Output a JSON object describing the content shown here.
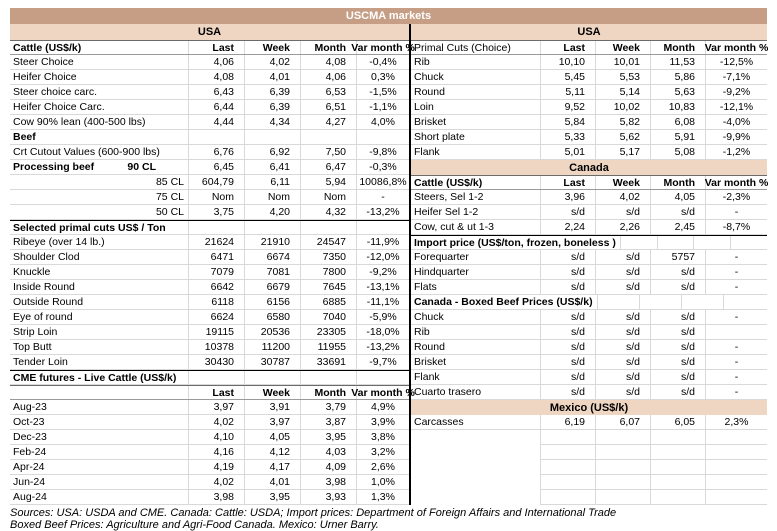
{
  "title": "USCMA markets",
  "colors": {
    "title_bg": "#c69e85",
    "band_bg": "#eed6c2"
  },
  "left": {
    "band": "USA",
    "rows": [
      {
        "t": "colheader",
        "cls": "label-bold",
        "label": "Cattle (US$/k)",
        "last": "Last",
        "week": "Week",
        "month": "Month",
        "var": "Var month %"
      },
      {
        "t": "data",
        "label": "Steer Choice",
        "last": "4,06",
        "week": "4,02",
        "month": "4,08",
        "var": "-0,4%"
      },
      {
        "t": "data",
        "label": "Heifer Choice",
        "last": "4,08",
        "week": "4,01",
        "month": "4,06",
        "var": "0,3%"
      },
      {
        "t": "data",
        "label": "Steer choice carc.",
        "last": "6,43",
        "week": "6,39",
        "month": "6,53",
        "var": "-1,5%"
      },
      {
        "t": "data",
        "label": "Heifer Choice Carc.",
        "last": "6,44",
        "week": "6,39",
        "month": "6,51",
        "var": "-1,1%"
      },
      {
        "t": "data",
        "label": "Cow 90% lean (400-500 lbs)",
        "last": "4,44",
        "week": "4,34",
        "month": "4,27",
        "var": "4,0%"
      },
      {
        "t": "section",
        "label": "Beef"
      },
      {
        "t": "data",
        "label": "Crt Cutout Values (600-900 lbs)",
        "last": "6,76",
        "week": "6,92",
        "month": "7,50",
        "var": "-9,8%"
      },
      {
        "t": "data",
        "cls": "label-bold proc",
        "label": "Processing beef",
        "label2": "90 CL",
        "last": "6,45",
        "week": "6,41",
        "month": "6,47",
        "var": "-0,3%"
      },
      {
        "t": "data",
        "label": "",
        "label2": "85 CL",
        "last": "604,79",
        "week": "6,11",
        "month": "5,94",
        "var": "10086,8%"
      },
      {
        "t": "data",
        "label": "",
        "label2": "75 CL",
        "last": "Nom",
        "week": "Nom",
        "month": "Nom",
        "var": "-"
      },
      {
        "t": "data",
        "label": "",
        "label2": "50 CL",
        "last": "3,75",
        "week": "4,20",
        "month": "4,32",
        "var": "-13,2%"
      },
      {
        "t": "section",
        "cls": "dark-top",
        "label": "Selected primal cuts US$ / Ton"
      },
      {
        "t": "data",
        "label": "Ribeye (over 14 lb.)",
        "last": "21624",
        "week": "21910",
        "month": "24547",
        "var": "-11,9%"
      },
      {
        "t": "data",
        "label": "Shoulder Clod",
        "last": "6471",
        "week": "6674",
        "month": "7350",
        "var": "-12,0%"
      },
      {
        "t": "data",
        "label": "Knuckle",
        "last": "7079",
        "week": "7081",
        "month": "7800",
        "var": "-9,2%"
      },
      {
        "t": "data",
        "label": "Inside Round",
        "last": "6642",
        "week": "6679",
        "month": "7645",
        "var": "-13,1%"
      },
      {
        "t": "data",
        "label": "Outside Round",
        "last": "6118",
        "week": "6156",
        "month": "6885",
        "var": "-11,1%"
      },
      {
        "t": "data",
        "label": "Eye of round",
        "last": "6624",
        "week": "6580",
        "month": "7040",
        "var": "-5,9%"
      },
      {
        "t": "data",
        "label": "Strip Loin",
        "last": "19115",
        "week": "20536",
        "month": "23305",
        "var": "-18,0%"
      },
      {
        "t": "data",
        "label": "Top Butt",
        "last": "10378",
        "week": "11200",
        "month": "11955",
        "var": "-13,2%"
      },
      {
        "t": "data",
        "label": "Tender Loin",
        "last": "30430",
        "week": "30787",
        "month": "33691",
        "var": "-9,7%"
      },
      {
        "t": "section",
        "cls": "dark-top",
        "label": "CME futures - Live Cattle (US$/k)"
      },
      {
        "t": "colheader",
        "label": "",
        "last": "Last",
        "week": "Week",
        "month": "Month",
        "var": "Var month %"
      },
      {
        "t": "data",
        "label": "Aug-23",
        "last": "3,97",
        "week": "3,91",
        "month": "3,79",
        "var": "4,9%"
      },
      {
        "t": "data",
        "label": "Oct-23",
        "last": "4,02",
        "week": "3,97",
        "month": "3,87",
        "var": "3,9%"
      },
      {
        "t": "data",
        "label": "Dec-23",
        "last": "4,10",
        "week": "4,05",
        "month": "3,95",
        "var": "3,8%"
      },
      {
        "t": "data",
        "label": "Feb-24",
        "last": "4,16",
        "week": "4,12",
        "month": "4,03",
        "var": "3,2%"
      },
      {
        "t": "data",
        "label": "Apr-24",
        "last": "4,19",
        "week": "4,17",
        "month": "4,09",
        "var": "2,6%"
      },
      {
        "t": "data",
        "label": "Jun-24",
        "last": "4,02",
        "week": "4,01",
        "month": "3,98",
        "var": "1,0%"
      },
      {
        "t": "data",
        "label": "Aug-24",
        "last": "3,98",
        "week": "3,95",
        "month": "3,93",
        "var": "1,3%"
      }
    ]
  },
  "right": {
    "band": "USA",
    "rows": [
      {
        "t": "colheader",
        "label": "Primal Cuts (Choice)",
        "last": "Last",
        "week": "Week",
        "month": "Month",
        "var": "Var month %"
      },
      {
        "t": "data",
        "label": "Rib",
        "last": "10,10",
        "week": "10,01",
        "month": "11,53",
        "var": "-12,5%"
      },
      {
        "t": "data",
        "label": "Chuck",
        "last": "5,45",
        "week": "5,53",
        "month": "5,86",
        "var": "-7,1%"
      },
      {
        "t": "data",
        "label": "Round",
        "last": "5,11",
        "week": "5,14",
        "month": "5,63",
        "var": "-9,2%"
      },
      {
        "t": "data",
        "label": "Loin",
        "last": "9,52",
        "week": "10,02",
        "month": "10,83",
        "var": "-12,1%"
      },
      {
        "t": "data",
        "label": "Brisket",
        "last": "5,84",
        "week": "5,82",
        "month": "6,08",
        "var": "-4,0%"
      },
      {
        "t": "data",
        "label": "Short plate",
        "last": "5,33",
        "week": "5,62",
        "month": "5,91",
        "var": "-9,9%"
      },
      {
        "t": "data",
        "label": "Flank",
        "last": "5,01",
        "week": "5,17",
        "month": "5,08",
        "var": "-1,2%"
      },
      {
        "t": "band",
        "label": "Canada"
      },
      {
        "t": "colheader",
        "cls": "label-bold",
        "label": "Cattle (US$/k)",
        "last": "Last",
        "week": "Week",
        "month": "Month",
        "var": "Var month %"
      },
      {
        "t": "data",
        "label": "Steers, Sel 1-2",
        "last": "3,96",
        "week": "4,02",
        "month": "4,05",
        "var": "-2,3%"
      },
      {
        "t": "data",
        "label": "Heifer Sel 1-2",
        "last": "s/d",
        "week": "s/d",
        "month": "s/d",
        "var": "-"
      },
      {
        "t": "data",
        "label": "Cow, cut & ut 1-3",
        "last": "2,24",
        "week": "2,26",
        "month": "2,45",
        "var": "-8,7%"
      },
      {
        "t": "section",
        "cls": "dark-top",
        "label": "Import price (US$/ton, frozen, boneless )"
      },
      {
        "t": "data",
        "label": "Forequarter",
        "last": "s/d",
        "week": "s/d",
        "month": "5757",
        "var": "-"
      },
      {
        "t": "data",
        "label": "Hindquarter",
        "last": "s/d",
        "week": "s/d",
        "month": "s/d",
        "var": "-"
      },
      {
        "t": "data",
        "label": "Flats",
        "last": "s/d",
        "week": "s/d",
        "month": "s/d",
        "var": "-"
      },
      {
        "t": "section",
        "label": "Canada - Boxed Beef Prices (US$/k)"
      },
      {
        "t": "data",
        "label": "Chuck",
        "last": "s/d",
        "week": "s/d",
        "month": "s/d",
        "var": "-"
      },
      {
        "t": "data",
        "label": "Rib",
        "last": "s/d",
        "week": "s/d",
        "month": "s/d",
        "var": ""
      },
      {
        "t": "data",
        "label": "Round",
        "last": "s/d",
        "week": "s/d",
        "month": "s/d",
        "var": "-"
      },
      {
        "t": "data",
        "label": "Brisket",
        "last": "s/d",
        "week": "s/d",
        "month": "s/d",
        "var": "-"
      },
      {
        "t": "data",
        "label": "Flank",
        "last": "s/d",
        "week": "s/d",
        "month": "s/d",
        "var": "-"
      },
      {
        "t": "data",
        "label": "Cuarto trasero",
        "last": "s/d",
        "week": "s/d",
        "month": "s/d",
        "var": "-"
      },
      {
        "t": "band",
        "label": "Mexico (US$/k)"
      },
      {
        "t": "data",
        "label": "Carcasses",
        "last": "6,19",
        "week": "6,07",
        "month": "6,05",
        "var": "2,3%"
      },
      {
        "t": "empty"
      },
      {
        "t": "empty"
      },
      {
        "t": "empty"
      },
      {
        "t": "empty"
      },
      {
        "t": "empty"
      }
    ]
  },
  "footer": {
    "line1": "Sources: USA: USDA and CME. Canada: Cattle: USDA; Import prices: Department of Foreign Affairs and International Trade",
    "line2": "Boxed Beef Prices: Agriculture and Agri-Food Canada. Mexico: Urner Barry."
  }
}
